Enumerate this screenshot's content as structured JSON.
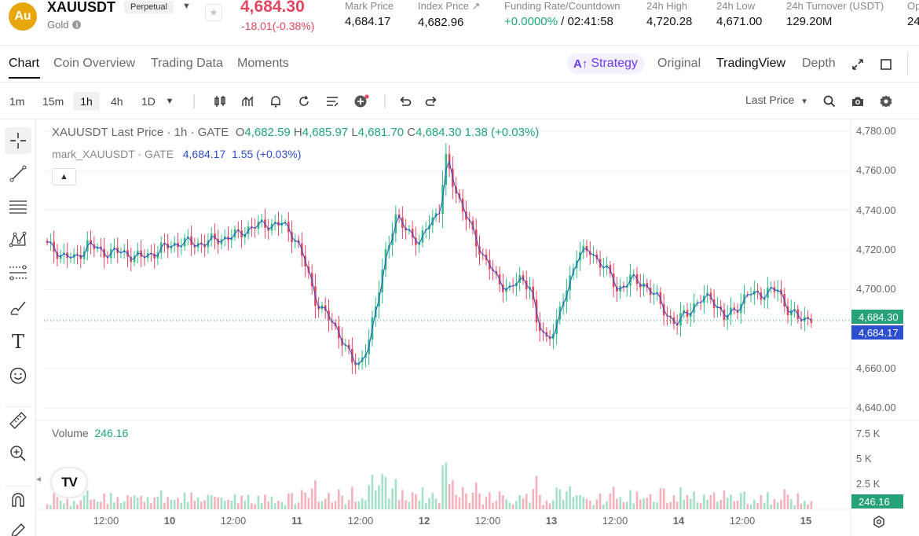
{
  "header": {
    "coin_logo": "Au",
    "symbol": "XAUUSDT",
    "contract_tag": "Perpetual",
    "asset_name": "Gold",
    "last_price": "4,684.30",
    "change": "-18.01(-0.38%)",
    "stats": [
      {
        "label": "Mark Price",
        "value": "4,684.17"
      },
      {
        "label": "Index Price ↗",
        "value": "4,682.96"
      },
      {
        "label": "Funding Rate/Countdown",
        "value_green": "+0.0000%",
        "value_rest": " / 02:41:58"
      },
      {
        "label": "24h High",
        "value": "4,720.28"
      },
      {
        "label": "24h Low",
        "value": "4,671.00"
      },
      {
        "label": "24h Turnover (USDT)",
        "value": "129.20M"
      },
      {
        "label": "Op",
        "value": "24"
      }
    ]
  },
  "tabs": {
    "left": [
      "Chart",
      "Coin Overview",
      "Trading Data",
      "Moments"
    ],
    "strategy": "Strategy",
    "strategy_prefix": "A↑",
    "right": [
      "Original",
      "TradingView",
      "Depth"
    ]
  },
  "toolbar": {
    "timeframes": [
      "1m",
      "15m",
      "1h",
      "4h",
      "1D"
    ],
    "active_timeframe": "1h",
    "price_type": "Last Price"
  },
  "legend": {
    "main_title": "XAUUSDT Last Price · 1h · GATE",
    "o_label": "O",
    "o": "4,682.59",
    "h_label": "H",
    "h": "4,685.97",
    "l_label": "L",
    "l": "4,681.70",
    "c_label": "C",
    "c": "4,684.30",
    "chg": "1.38 (+0.03%)",
    "mark_title": "mark_XAUUSDT · GATE",
    "mark_value": "4,684.17",
    "mark_chg": "1.55 (+0.03%)",
    "volume_label": "Volume",
    "volume_value": "246.16"
  },
  "colors": {
    "up": "#2ebd85",
    "down": "#e2465e",
    "mark_line": "#2d4fcf",
    "last_price_label": "#26a17b",
    "mark_price_label": "#2d4fcf",
    "strategy_accent": "#6b3cf6"
  },
  "chart_data": {
    "type": "candlestick",
    "title": "XAUUSDT Last Price · 1h · GATE",
    "y_ticks": [
      "4,780.00",
      "4,760.00",
      "4,740.00",
      "4,720.00",
      "4,700.00",
      "4,680.00",
      "4,660.00",
      "4,640.00"
    ],
    "ylim": [
      4635,
      4782
    ],
    "vol_ticks": [
      "7.5 K",
      "5 K",
      "2.5 K"
    ],
    "vol_max": 8200,
    "x_ticks": [
      "12:00",
      "10",
      "12:00",
      "11",
      "12:00",
      "12",
      "12:00",
      "13",
      "12:00",
      "14",
      "12:00",
      "15"
    ],
    "last_price_label": "4,684.30",
    "mark_price_label": "4,684.17",
    "volume_label": "246.16",
    "close_anchors": [
      [
        0,
        4722
      ],
      [
        4,
        4718
      ],
      [
        8,
        4715
      ],
      [
        12,
        4723
      ],
      [
        16,
        4719
      ],
      [
        20,
        4719
      ],
      [
        24,
        4718
      ],
      [
        28,
        4716
      ],
      [
        32,
        4719
      ],
      [
        36,
        4722
      ],
      [
        40,
        4724
      ],
      [
        44,
        4723
      ],
      [
        48,
        4724
      ],
      [
        52,
        4726
      ],
      [
        56,
        4727
      ],
      [
        60,
        4731
      ],
      [
        65,
        4733
      ],
      [
        70,
        4733
      ],
      [
        74,
        4726
      ],
      [
        77,
        4712
      ],
      [
        80,
        4695
      ],
      [
        84,
        4685
      ],
      [
        88,
        4675
      ],
      [
        91,
        4663
      ],
      [
        93,
        4662
      ],
      [
        96,
        4675
      ],
      [
        98,
        4690
      ],
      [
        101,
        4720
      ],
      [
        104,
        4735
      ],
      [
        108,
        4730
      ],
      [
        111,
        4722
      ],
      [
        114,
        4735
      ],
      [
        117,
        4740
      ],
      [
        119,
        4765
      ],
      [
        121,
        4755
      ],
      [
        124,
        4740
      ],
      [
        127,
        4728
      ],
      [
        130,
        4717
      ],
      [
        134,
        4705
      ],
      [
        138,
        4700
      ],
      [
        141,
        4705
      ],
      [
        144,
        4703
      ],
      [
        146,
        4682
      ],
      [
        149,
        4675
      ],
      [
        152,
        4683
      ],
      [
        155,
        4700
      ],
      [
        158,
        4718
      ],
      [
        162,
        4719
      ],
      [
        166,
        4712
      ],
      [
        170,
        4700
      ],
      [
        174,
        4705
      ],
      [
        178,
        4703
      ],
      [
        182,
        4695
      ],
      [
        186,
        4685
      ],
      [
        188,
        4682
      ],
      [
        190,
        4688
      ],
      [
        194,
        4693
      ],
      [
        198,
        4697
      ],
      [
        202,
        4685
      ],
      [
        206,
        4692
      ],
      [
        210,
        4698
      ],
      [
        214,
        4698
      ],
      [
        218,
        4700
      ],
      [
        221,
        4690
      ],
      [
        224,
        4685
      ],
      [
        228,
        4686
      ]
    ]
  }
}
